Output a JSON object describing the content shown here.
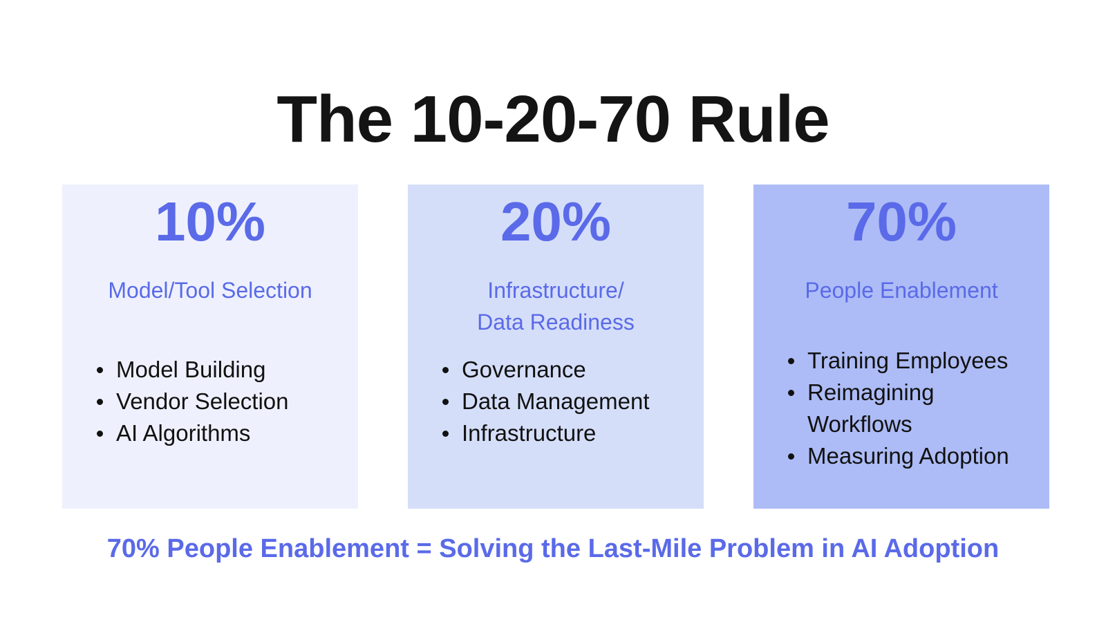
{
  "title": "The 10-20-70 Rule",
  "colors": {
    "accent": "#5a6ae8",
    "card_1_bg": "#eef1fd",
    "card_2_bg": "#d5def9",
    "card_3_bg": "#adbcf6",
    "text": "#111111"
  },
  "cards": [
    {
      "percent": "10%",
      "heading_line_1": "Model/Tool Selection",
      "heading_line_2": "",
      "items": [
        "Model Building",
        "Vendor Selection",
        "AI Algorithms"
      ]
    },
    {
      "percent": "20%",
      "heading_line_1": "Infrastructure/",
      "heading_line_2": "Data Readiness",
      "items": [
        "Governance",
        "Data Management",
        "Infrastructure"
      ]
    },
    {
      "percent": "70%",
      "heading_line_1": "People Enablement",
      "heading_line_2": "",
      "items": [
        "Training Employees",
        "Reimagining Workflows",
        "Measuring Adoption"
      ]
    }
  ],
  "tagline": "70% People Enablement = Solving the Last-Mile Problem in AI Adoption"
}
